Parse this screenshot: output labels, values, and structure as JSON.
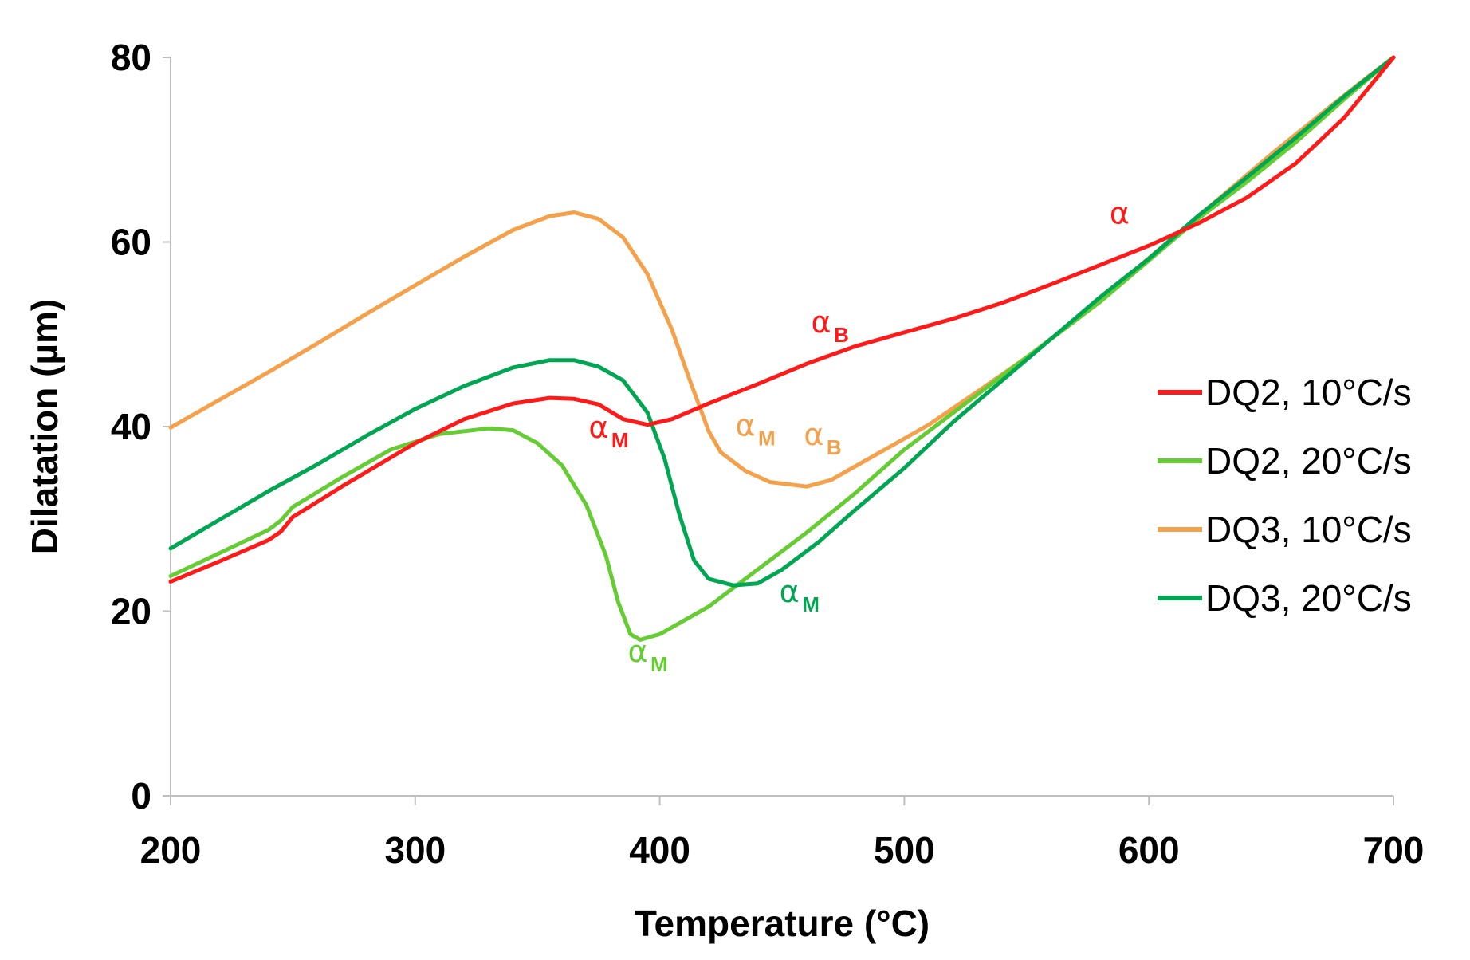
{
  "chart_data": {
    "type": "line",
    "title": "",
    "xlabel": "Temperature (°C)",
    "ylabel": "Dilatation (µm)",
    "xlim": [
      200,
      700
    ],
    "ylim": [
      0,
      80
    ],
    "xticks": [
      200,
      300,
      400,
      500,
      600,
      700
    ],
    "yticks": [
      0,
      20,
      40,
      60,
      80
    ],
    "grid": false,
    "legend_position": "right",
    "series": [
      {
        "name": "DQ2, 10°C/s",
        "color": "#ff1a1a",
        "points": [
          [
            200,
            23.2
          ],
          [
            220,
            25.4
          ],
          [
            240,
            27.7
          ],
          [
            245,
            28.6
          ],
          [
            250,
            30.2
          ],
          [
            270,
            33.5
          ],
          [
            300,
            38.2
          ],
          [
            320,
            40.8
          ],
          [
            340,
            42.5
          ],
          [
            355,
            43.1
          ],
          [
            365,
            43.0
          ],
          [
            375,
            42.4
          ],
          [
            385,
            40.8
          ],
          [
            395,
            40.2
          ],
          [
            405,
            40.8
          ],
          [
            420,
            42.5
          ],
          [
            440,
            44.6
          ],
          [
            460,
            46.8
          ],
          [
            480,
            48.7
          ],
          [
            500,
            50.2
          ],
          [
            520,
            51.7
          ],
          [
            540,
            53.4
          ],
          [
            560,
            55.4
          ],
          [
            580,
            57.5
          ],
          [
            600,
            59.6
          ],
          [
            620,
            62.0
          ],
          [
            640,
            64.8
          ],
          [
            660,
            68.5
          ],
          [
            680,
            73.5
          ],
          [
            700,
            80.0
          ]
        ]
      },
      {
        "name": "DQ2, 20°C/s",
        "color": "#66cc33",
        "points": [
          [
            200,
            23.8
          ],
          [
            220,
            26.3
          ],
          [
            240,
            28.8
          ],
          [
            245,
            29.8
          ],
          [
            250,
            31.3
          ],
          [
            270,
            34.5
          ],
          [
            290,
            37.5
          ],
          [
            310,
            39.2
          ],
          [
            330,
            39.8
          ],
          [
            340,
            39.6
          ],
          [
            350,
            38.2
          ],
          [
            360,
            35.8
          ],
          [
            370,
            31.5
          ],
          [
            378,
            26.0
          ],
          [
            383,
            21.0
          ],
          [
            388,
            17.5
          ],
          [
            392,
            16.9
          ],
          [
            400,
            17.5
          ],
          [
            420,
            20.5
          ],
          [
            440,
            24.5
          ],
          [
            460,
            28.5
          ],
          [
            480,
            32.8
          ],
          [
            500,
            37.5
          ],
          [
            520,
            41.5
          ],
          [
            540,
            45.5
          ],
          [
            560,
            49.5
          ],
          [
            580,
            53.5
          ],
          [
            600,
            58.0
          ],
          [
            620,
            62.5
          ],
          [
            640,
            66.5
          ],
          [
            660,
            70.8
          ],
          [
            680,
            75.5
          ],
          [
            700,
            80.0
          ]
        ]
      },
      {
        "name": "DQ3, 10°C/s",
        "color": "#f5a04a",
        "points": [
          [
            200,
            39.9
          ],
          [
            220,
            42.9
          ],
          [
            240,
            45.9
          ],
          [
            260,
            49.0
          ],
          [
            280,
            52.2
          ],
          [
            300,
            55.3
          ],
          [
            320,
            58.4
          ],
          [
            340,
            61.3
          ],
          [
            355,
            62.8
          ],
          [
            365,
            63.2
          ],
          [
            375,
            62.5
          ],
          [
            385,
            60.5
          ],
          [
            395,
            56.5
          ],
          [
            405,
            50.5
          ],
          [
            413,
            44.5
          ],
          [
            420,
            39.5
          ],
          [
            425,
            37.2
          ],
          [
            435,
            35.2
          ],
          [
            445,
            34.0
          ],
          [
            460,
            33.5
          ],
          [
            470,
            34.2
          ],
          [
            490,
            37.2
          ],
          [
            510,
            40.2
          ],
          [
            530,
            43.8
          ],
          [
            550,
            47.5
          ],
          [
            570,
            51.5
          ],
          [
            590,
            56.0
          ],
          [
            610,
            60.5
          ],
          [
            630,
            65.0
          ],
          [
            650,
            69.5
          ],
          [
            670,
            73.8
          ],
          [
            690,
            78.0
          ],
          [
            700,
            80.0
          ]
        ]
      },
      {
        "name": "DQ3, 20°C/s",
        "color": "#00a651",
        "points": [
          [
            200,
            26.8
          ],
          [
            220,
            29.9
          ],
          [
            240,
            33.0
          ],
          [
            260,
            35.9
          ],
          [
            280,
            39.0
          ],
          [
            300,
            41.9
          ],
          [
            320,
            44.4
          ],
          [
            340,
            46.4
          ],
          [
            355,
            47.2
          ],
          [
            365,
            47.2
          ],
          [
            375,
            46.5
          ],
          [
            385,
            45.0
          ],
          [
            395,
            41.5
          ],
          [
            402,
            36.5
          ],
          [
            408,
            30.5
          ],
          [
            414,
            25.5
          ],
          [
            420,
            23.5
          ],
          [
            430,
            22.8
          ],
          [
            440,
            23.0
          ],
          [
            450,
            24.5
          ],
          [
            465,
            27.5
          ],
          [
            480,
            31.0
          ],
          [
            500,
            35.5
          ],
          [
            520,
            40.5
          ],
          [
            540,
            45.0
          ],
          [
            560,
            49.5
          ],
          [
            580,
            54.0
          ],
          [
            600,
            58.2
          ],
          [
            620,
            62.8
          ],
          [
            640,
            67.0
          ],
          [
            660,
            71.3
          ],
          [
            680,
            75.8
          ],
          [
            700,
            80.0
          ]
        ]
      }
    ],
    "annotations": [
      {
        "label": "α",
        "sub": "",
        "color": "#ff1a1a",
        "x": 588,
        "y": 62.0
      },
      {
        "label": "α",
        "sub": "B",
        "color": "#ff1a1a",
        "x": 466,
        "y": 50.2
      },
      {
        "label": "α",
        "sub": "M",
        "color": "#ff1a1a",
        "x": 375,
        "y": 38.8
      },
      {
        "label": "α",
        "sub": "M",
        "color": "#f5a04a",
        "x": 435,
        "y": 39.0
      },
      {
        "label": "α",
        "sub": "B",
        "color": "#f5a04a",
        "x": 463,
        "y": 38.0
      },
      {
        "label": "α",
        "sub": "M",
        "color": "#00a651",
        "x": 453,
        "y": 21.0
      },
      {
        "label": "α",
        "sub": "M",
        "color": "#66cc33",
        "x": 391,
        "y": 14.5
      }
    ]
  }
}
